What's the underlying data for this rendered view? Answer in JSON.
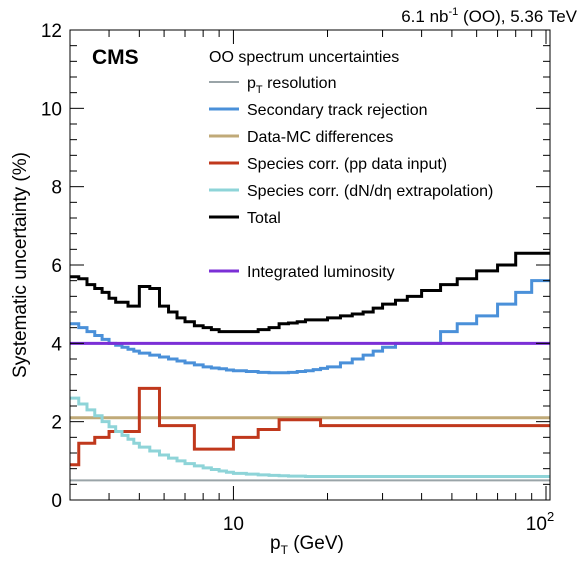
{
  "header": {
    "cms": "CMS",
    "lumi_value": "6.1 nb",
    "lumi_exp": "-1",
    "lumi_rest": " (OO), 5.36 TeV"
  },
  "legend": {
    "title": "OO spectrum uncertainties",
    "entries": [
      {
        "label": "p",
        "sub": "T",
        "rest": " resolution"
      },
      {
        "label": "Secondary track rejection",
        "sub": "",
        "rest": ""
      },
      {
        "label": "Data-MC differences",
        "sub": "",
        "rest": ""
      },
      {
        "label": "Species corr. (pp data input)",
        "sub": "",
        "rest": ""
      },
      {
        "label": "Species corr. (dN/dη extrapolation)",
        "sub": "",
        "rest": ""
      },
      {
        "label": "Total",
        "sub": "",
        "rest": ""
      },
      {
        "label": "Integrated luminosity",
        "sub": "",
        "rest": ""
      }
    ]
  },
  "chart_data": {
    "type": "line",
    "title": "",
    "xlabel": {
      "main": "p",
      "sub": "T",
      "rest": " (GeV)"
    },
    "ylabel": "Systematic uncertainty (%)",
    "xscale": "log",
    "xlim": [
      3.0,
      103
    ],
    "ylim": [
      0,
      12
    ],
    "yticks": [
      "0",
      "2",
      "4",
      "6",
      "8",
      "10",
      "12"
    ],
    "xticks": [
      {
        "value": 10,
        "label": "10"
      },
      {
        "value": 100,
        "label": "10",
        "exp": "2"
      }
    ],
    "grid": false,
    "legend_position": "top-right",
    "bin_edges": [
      3.0,
      3.2,
      3.4,
      3.6,
      3.8,
      4.0,
      4.2,
      4.4,
      4.6,
      4.8,
      5.0,
      5.4,
      5.8,
      6.2,
      6.6,
      7.0,
      7.5,
      8.0,
      8.5,
      9.0,
      9.5,
      10.0,
      11.0,
      12.0,
      13.0,
      14.0,
      15.0,
      16.0,
      17.0,
      18.0,
      19.0,
      20.0,
      22.0,
      24.0,
      26.0,
      28.0,
      30.0,
      33.0,
      36.0,
      40.0,
      46.0,
      52.0,
      60.0,
      70.0,
      80.0,
      90.0,
      103.0
    ],
    "series": [
      {
        "name": "pT resolution",
        "color": "#9aa4a8",
        "width": 2,
        "values": [
          0.5,
          0.5,
          0.5,
          0.5,
          0.5,
          0.5,
          0.5,
          0.5,
          0.5,
          0.5,
          0.5,
          0.5,
          0.5,
          0.5,
          0.5,
          0.5,
          0.5,
          0.5,
          0.5,
          0.5,
          0.5,
          0.5,
          0.5,
          0.5,
          0.5,
          0.5,
          0.5,
          0.5,
          0.5,
          0.5,
          0.5,
          0.5,
          0.5,
          0.5,
          0.5,
          0.5,
          0.5,
          0.5,
          0.5,
          0.5,
          0.5,
          0.5,
          0.5,
          0.5,
          0.5,
          0.5
        ]
      },
      {
        "name": "Secondary track rejection",
        "color": "#4a90d9",
        "width": 3,
        "values": [
          4.5,
          4.4,
          4.3,
          4.2,
          4.1,
          4.0,
          3.95,
          3.9,
          3.85,
          3.8,
          3.75,
          3.7,
          3.65,
          3.6,
          3.55,
          3.5,
          3.45,
          3.4,
          3.37,
          3.35,
          3.32,
          3.3,
          3.28,
          3.26,
          3.25,
          3.25,
          3.26,
          3.28,
          3.3,
          3.33,
          3.36,
          3.4,
          3.5,
          3.6,
          3.7,
          3.8,
          3.9,
          4.0,
          4.0,
          4.0,
          4.3,
          4.5,
          4.7,
          5.0,
          5.3,
          5.6
        ]
      },
      {
        "name": "Data-MC differences",
        "color": "#c0aa78",
        "width": 3,
        "values": [
          2.1,
          2.1,
          2.1,
          2.1,
          2.1,
          2.1,
          2.1,
          2.1,
          2.1,
          2.1,
          2.1,
          2.1,
          2.1,
          2.1,
          2.1,
          2.1,
          2.1,
          2.1,
          2.1,
          2.1,
          2.1,
          2.1,
          2.1,
          2.1,
          2.1,
          2.1,
          2.1,
          2.1,
          2.1,
          2.1,
          2.1,
          2.1,
          2.1,
          2.1,
          2.1,
          2.1,
          2.1,
          2.1,
          2.1,
          2.1,
          2.1,
          2.1,
          2.1,
          2.1,
          2.1,
          2.1
        ]
      },
      {
        "name": "Species corr. (pp data input)",
        "color": "#c0381c",
        "width": 3,
        "values": [
          0.9,
          1.45,
          1.45,
          1.6,
          1.6,
          1.75,
          1.75,
          1.75,
          1.75,
          1.75,
          2.85,
          2.85,
          1.9,
          1.9,
          1.9,
          1.9,
          1.3,
          1.3,
          1.3,
          1.3,
          1.3,
          1.6,
          1.6,
          1.8,
          1.8,
          2.05,
          2.05,
          2.05,
          2.05,
          2.05,
          1.9,
          1.9,
          1.9,
          1.9,
          1.9,
          1.9,
          1.9,
          1.9,
          1.9,
          1.9,
          1.9,
          1.9,
          1.9,
          1.9,
          1.9,
          1.9
        ]
      },
      {
        "name": "Species corr. (dN/dη extrapolation)",
        "color": "#8ed4d8",
        "width": 3,
        "values": [
          2.6,
          2.45,
          2.3,
          2.15,
          2.0,
          1.87,
          1.75,
          1.65,
          1.55,
          1.45,
          1.35,
          1.25,
          1.15,
          1.07,
          1.0,
          0.93,
          0.87,
          0.82,
          0.78,
          0.74,
          0.71,
          0.68,
          0.66,
          0.64,
          0.63,
          0.62,
          0.61,
          0.61,
          0.6,
          0.6,
          0.6,
          0.6,
          0.6,
          0.6,
          0.6,
          0.6,
          0.6,
          0.6,
          0.6,
          0.6,
          0.6,
          0.6,
          0.6,
          0.6,
          0.6,
          0.6
        ]
      },
      {
        "name": "Total",
        "color": "#000000",
        "width": 3,
        "values": [
          5.7,
          5.65,
          5.5,
          5.4,
          5.3,
          5.15,
          5.05,
          5.05,
          4.95,
          4.95,
          5.45,
          5.4,
          4.95,
          4.8,
          4.65,
          4.55,
          4.45,
          4.4,
          4.35,
          4.3,
          4.3,
          4.3,
          4.3,
          4.35,
          4.4,
          4.5,
          4.52,
          4.55,
          4.6,
          4.6,
          4.6,
          4.65,
          4.7,
          4.75,
          4.8,
          4.9,
          5.0,
          5.1,
          5.2,
          5.35,
          5.5,
          5.65,
          5.85,
          6.0,
          6.3,
          6.3
        ]
      },
      {
        "name": "Integrated luminosity",
        "color": "#7b2fd6",
        "width": 3,
        "constant": 4.0
      }
    ]
  }
}
